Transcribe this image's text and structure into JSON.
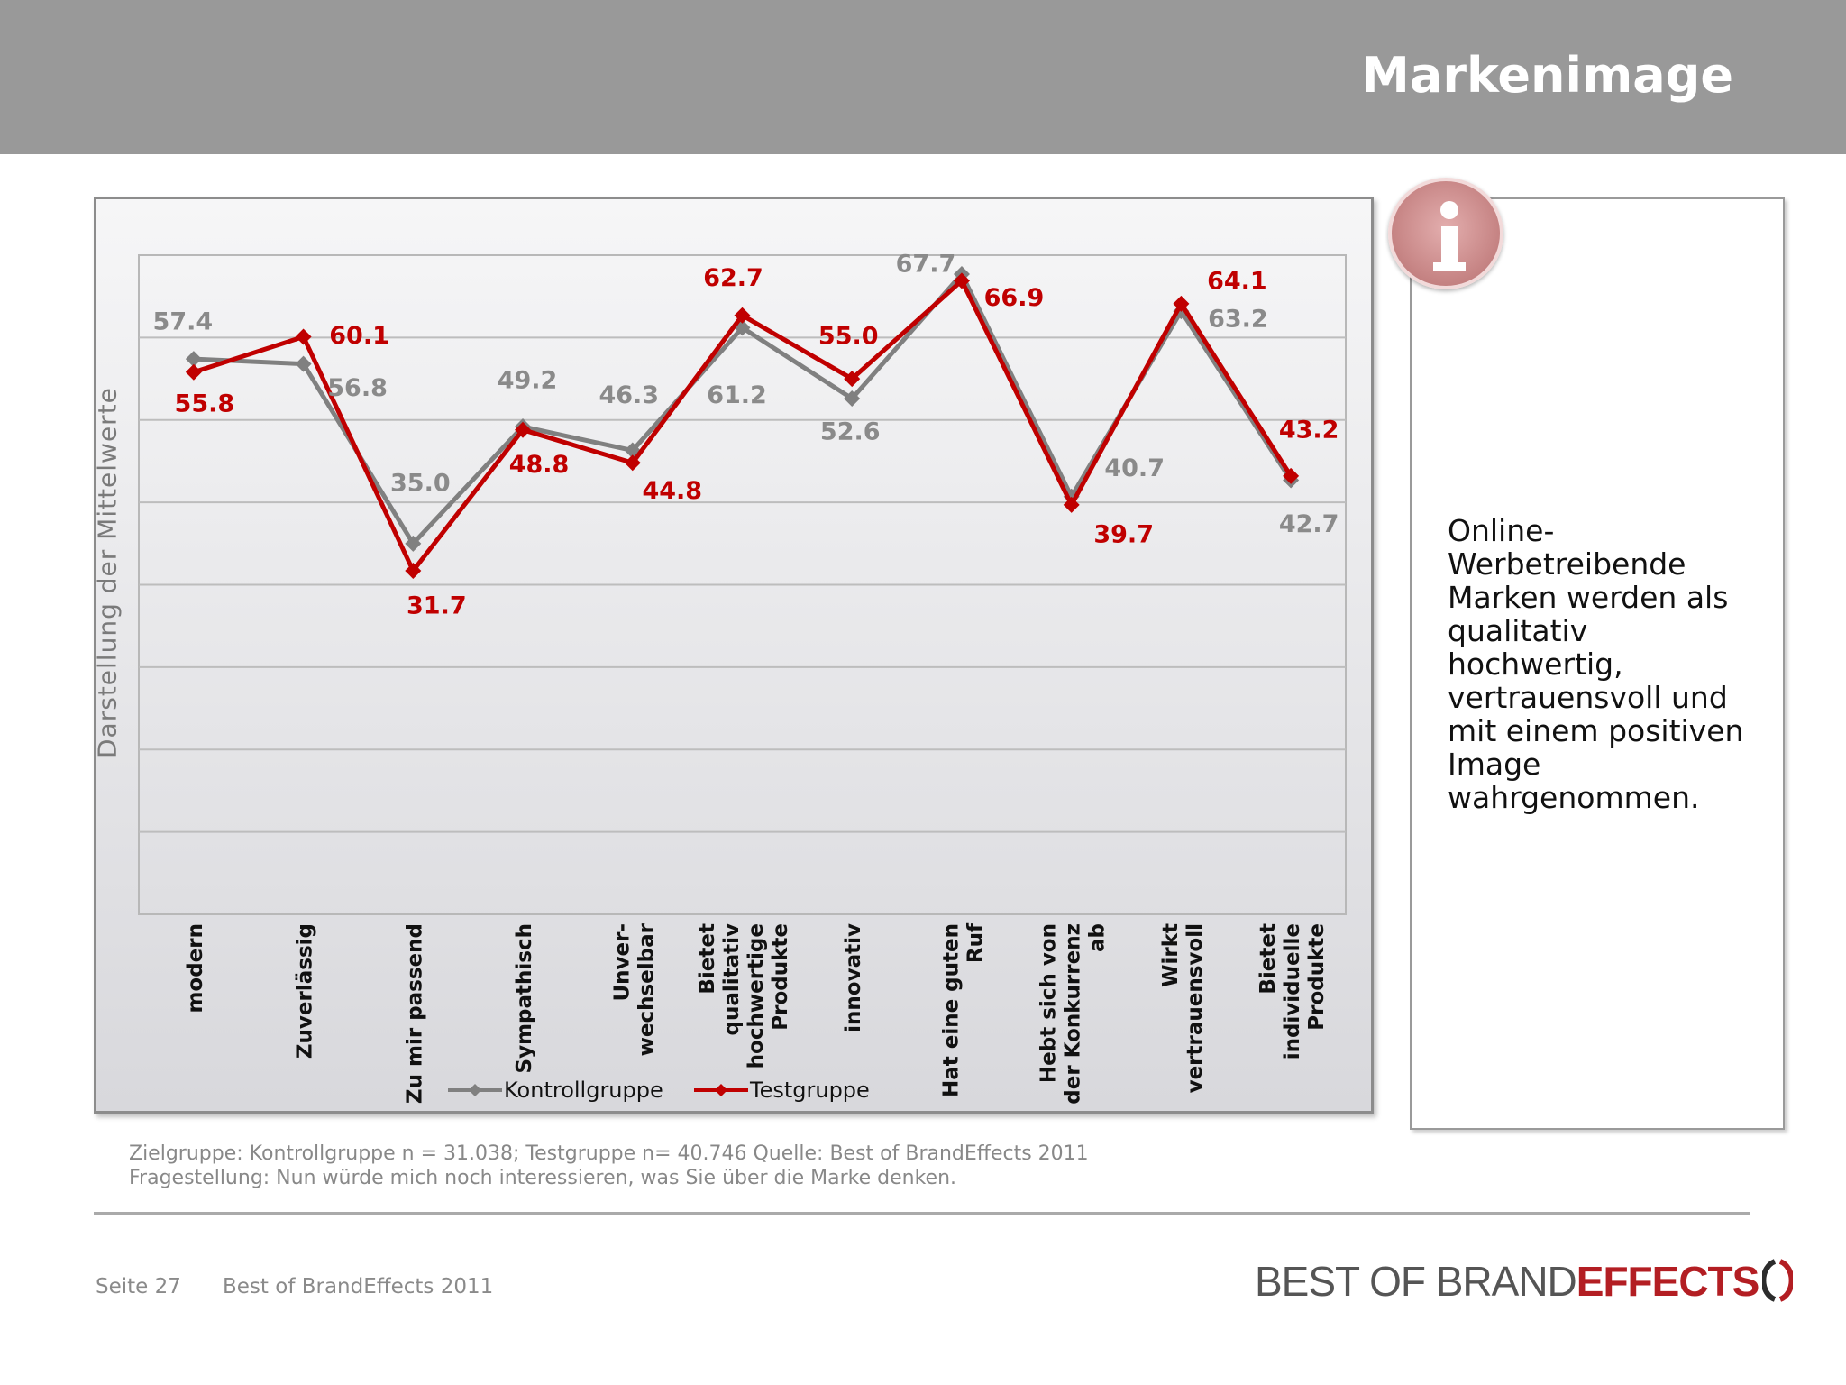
{
  "page": {
    "title": "Markenimage"
  },
  "chart_data": {
    "type": "line",
    "ylabel": "Darstellung der Mittelwerte",
    "xlabel": "",
    "ylim": [
      -10,
      70
    ],
    "grid": true,
    "legend_position": "bottom",
    "categories": [
      "modern",
      "Zuverlässig",
      "Zu mir passend",
      "Sympathisch",
      "Unver- wechselbar",
      "Bietet qualitativ hochwertige Produkte",
      "innovativ",
      "Hat eine guten Ruf",
      "Hebt sich von der Konkurrenz ab",
      "Wirkt vertrauensvoll",
      "Bietet individuelle Produkte"
    ],
    "category_lines": [
      [
        "modern"
      ],
      [
        "Zuverlässig"
      ],
      [
        "Zu mir passend"
      ],
      [
        "Sympathisch"
      ],
      [
        "Unver-",
        "wechselbar"
      ],
      [
        "Bietet",
        "qualitativ",
        "hochwertige",
        "Produkte"
      ],
      [
        "innovativ"
      ],
      [
        "Hat eine guten",
        "Ruf"
      ],
      [
        "Hebt sich von",
        "der Konkurrenz",
        "ab"
      ],
      [
        "Wirkt",
        "vertrauensvoll"
      ],
      [
        "Bietet",
        "individuelle",
        "Produkte"
      ]
    ],
    "series": [
      {
        "name": "Kontrollgruppe",
        "color": "#808080",
        "values": [
          57.4,
          56.8,
          35.0,
          49.2,
          46.3,
          61.2,
          52.6,
          67.7,
          40.7,
          63.2,
          42.7
        ],
        "labels": [
          "57.4",
          "56.8",
          "35.0",
          "49.2",
          "46.3",
          "61.2",
          "52.6",
          "67.7",
          "40.7",
          "63.2",
          "42.7"
        ]
      },
      {
        "name": "Testgruppe",
        "color": "#c00000",
        "values": [
          55.8,
          60.1,
          31.7,
          48.8,
          44.8,
          62.7,
          55.0,
          66.9,
          39.7,
          64.1,
          43.2
        ],
        "labels": [
          "55.8",
          "60.1",
          "31.7",
          "48.8",
          "44.8",
          "62.7",
          "55.0",
          "66.9",
          "39.7",
          "64.1",
          "43.2"
        ]
      }
    ]
  },
  "info_box": {
    "text": "Online-Werbetreibende Marken werden als qualitativ hochwertig, vertrauensvoll und mit einem positiven Image wahrgenommen."
  },
  "footnote": {
    "line1": "Zielgruppe: Kontrollgruppe n = 31.038; Testgruppe n= 40.746 Quelle: Best of BrandEffects 2011",
    "line2": "Fragestellung: Nun würde mich noch interessieren, was Sie über die Marke denken."
  },
  "footer": {
    "page": "Seite 27",
    "source": "Best of BrandEffects 2011"
  },
  "logo": {
    "part1": "BEST OF BRAND",
    "part2": "EFFECTS"
  },
  "colors": {
    "header": "#999999",
    "accent": "#c00000",
    "kontroll": "#808080"
  }
}
